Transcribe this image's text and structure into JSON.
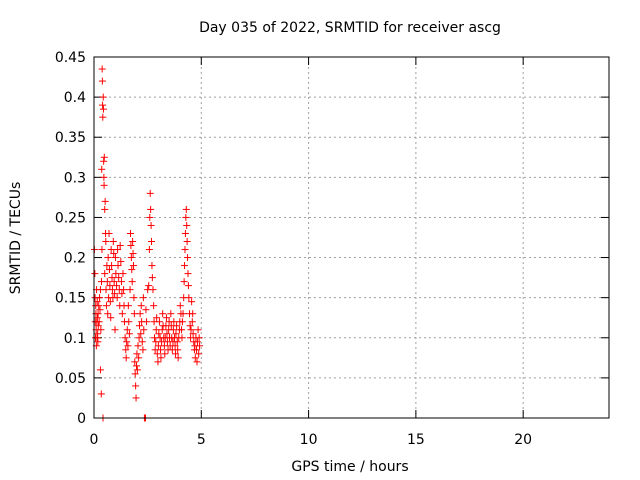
{
  "chart_data": {
    "type": "scatter",
    "title": "Day 035 of 2022, SRMTID for receiver ascg",
    "xlabel": "GPS time / hours",
    "ylabel": "SRMTID / TECUs",
    "xlim": [
      0,
      24
    ],
    "ylim": [
      0,
      0.45
    ],
    "x_ticks": [
      0,
      5,
      10,
      15,
      20
    ],
    "x_tick_labels": [
      "0",
      "5",
      "10",
      "15",
      "20"
    ],
    "y_ticks": [
      0,
      0.05,
      0.1,
      0.15,
      0.2,
      0.25,
      0.3,
      0.35,
      0.4,
      0.45
    ],
    "y_tick_labels": [
      "0",
      "0.05",
      "0.1",
      "0.15",
      "0.2",
      "0.25",
      "0.3",
      "0.35",
      "0.4",
      "0.45"
    ],
    "grid": true,
    "marker": "+",
    "series": [
      {
        "name": "SRMTID",
        "color": "#ff0000",
        "points": [
          [
            0.02,
            0.21
          ],
          [
            0.04,
            0.18
          ],
          [
            0.05,
            0.15
          ],
          [
            0.06,
            0.12
          ],
          [
            0.07,
            0.1
          ],
          [
            0.08,
            0.14
          ],
          [
            0.09,
            0.13
          ],
          [
            0.1,
            0.11
          ],
          [
            0.11,
            0.09
          ],
          [
            0.12,
            0.16
          ],
          [
            0.13,
            0.12
          ],
          [
            0.14,
            0.1
          ],
          [
            0.15,
            0.145
          ],
          [
            0.16,
            0.125
          ],
          [
            0.17,
            0.105
          ],
          [
            0.18,
            0.095
          ],
          [
            0.19,
            0.13
          ],
          [
            0.2,
            0.115
          ],
          [
            0.22,
            0.14
          ],
          [
            0.24,
            0.12
          ],
          [
            0.26,
            0.15
          ],
          [
            0.28,
            0.135
          ],
          [
            0.3,
            0.06
          ],
          [
            0.3,
            0.16
          ],
          [
            0.32,
            0.11
          ],
          [
            0.34,
            0.03
          ],
          [
            0.35,
            0.17
          ],
          [
            0.36,
            0.31
          ],
          [
            0.37,
            0.21
          ],
          [
            0.38,
            0.435
          ],
          [
            0.39,
            0.42
          ],
          [
            0.4,
            0.39
          ],
          [
            0.41,
            0.375
          ],
          [
            0.42,
            0.0
          ],
          [
            0.43,
            0.4
          ],
          [
            0.44,
            0.385
          ],
          [
            0.45,
            0.32
          ],
          [
            0.46,
            0.3
          ],
          [
            0.47,
            0.29
          ],
          [
            0.48,
            0.325
          ],
          [
            0.5,
            0.18
          ],
          [
            0.5,
            0.26
          ],
          [
            0.52,
            0.27
          ],
          [
            0.54,
            0.23
          ],
          [
            0.55,
            0.22
          ],
          [
            0.56,
            0.16
          ],
          [
            0.58,
            0.14
          ],
          [
            0.6,
            0.19
          ],
          [
            0.62,
            0.17
          ],
          [
            0.64,
            0.13
          ],
          [
            0.66,
            0.2
          ],
          [
            0.68,
            0.15
          ],
          [
            0.7,
            0.23
          ],
          [
            0.72,
            0.185
          ],
          [
            0.74,
            0.165
          ],
          [
            0.76,
            0.145
          ],
          [
            0.78,
            0.125
          ],
          [
            0.8,
            0.21
          ],
          [
            0.82,
            0.19
          ],
          [
            0.84,
            0.175
          ],
          [
            0.86,
            0.16
          ],
          [
            0.88,
            0.15
          ],
          [
            0.9,
            0.22
          ],
          [
            0.92,
            0.205
          ],
          [
            0.94,
            0.17
          ],
          [
            0.96,
            0.155
          ],
          [
            0.98,
            0.11
          ],
          [
            1.0,
            0.2
          ],
          [
            1.02,
            0.18
          ],
          [
            1.05,
            0.165
          ],
          [
            1.08,
            0.15
          ],
          [
            1.1,
            0.21
          ],
          [
            1.12,
            0.19
          ],
          [
            1.15,
            0.175
          ],
          [
            1.18,
            0.16
          ],
          [
            1.2,
            0.14
          ],
          [
            1.22,
            0.215
          ],
          [
            1.25,
            0.195
          ],
          [
            1.28,
            0.17
          ],
          [
            1.3,
            0.155
          ],
          [
            1.32,
            0.13
          ],
          [
            1.35,
            0.18
          ],
          [
            1.38,
            0.16
          ],
          [
            1.4,
            0.14
          ],
          [
            1.42,
            0.12
          ],
          [
            1.45,
            0.1
          ],
          [
            1.48,
            0.085
          ],
          [
            1.5,
            0.075
          ],
          [
            1.52,
            0.095
          ],
          [
            1.55,
            0.11
          ],
          [
            1.58,
            0.09
          ],
          [
            1.6,
            0.14
          ],
          [
            1.62,
            0.12
          ],
          [
            1.65,
            0.105
          ],
          [
            1.68,
            0.16
          ],
          [
            1.7,
            0.23
          ],
          [
            1.72,
            0.215
          ],
          [
            1.74,
            0.2
          ],
          [
            1.76,
            0.185
          ],
          [
            1.78,
            0.17
          ],
          [
            1.8,
            0.22
          ],
          [
            1.82,
            0.205
          ],
          [
            1.84,
            0.19
          ],
          [
            1.86,
            0.15
          ],
          [
            1.88,
            0.13
          ],
          [
            1.9,
            0.07
          ],
          [
            1.92,
            0.055
          ],
          [
            1.94,
            0.04
          ],
          [
            1.96,
            0.025
          ],
          [
            1.98,
            0.065
          ],
          [
            2.0,
            0.08
          ],
          [
            2.02,
            0.06
          ],
          [
            2.05,
            0.09
          ],
          [
            2.08,
            0.075
          ],
          [
            2.1,
            0.1
          ],
          [
            2.12,
            0.115
          ],
          [
            2.15,
            0.13
          ],
          [
            2.18,
            0.105
          ],
          [
            2.2,
            0.14
          ],
          [
            2.22,
            0.12
          ],
          [
            2.25,
            0.095
          ],
          [
            2.28,
            0.085
          ],
          [
            2.3,
            0.15
          ],
          [
            2.32,
            0.11
          ],
          [
            2.35,
            0.0
          ],
          [
            2.4,
            0.0
          ],
          [
            2.42,
            0.135
          ],
          [
            2.45,
            0.12
          ],
          [
            2.5,
            0.16
          ],
          [
            2.55,
            0.165
          ],
          [
            2.58,
            0.21
          ],
          [
            2.6,
            0.25
          ],
          [
            2.62,
            0.28
          ],
          [
            2.64,
            0.26
          ],
          [
            2.66,
            0.24
          ],
          [
            2.68,
            0.22
          ],
          [
            2.7,
            0.19
          ],
          [
            2.72,
            0.175
          ],
          [
            2.75,
            0.16
          ],
          [
            2.78,
            0.14
          ],
          [
            2.8,
            0.12
          ],
          [
            2.82,
            0.1
          ],
          [
            2.85,
            0.085
          ],
          [
            2.88,
            0.095
          ],
          [
            2.9,
            0.11
          ],
          [
            2.92,
            0.125
          ],
          [
            2.95,
            0.08
          ],
          [
            2.98,
            0.07
          ],
          [
            3.0,
            0.09
          ],
          [
            3.02,
            0.105
          ],
          [
            3.05,
            0.12
          ],
          [
            3.08,
            0.1
          ],
          [
            3.1,
            0.085
          ],
          [
            3.12,
            0.075
          ],
          [
            3.15,
            0.095
          ],
          [
            3.18,
            0.11
          ],
          [
            3.2,
            0.13
          ],
          [
            3.22,
            0.115
          ],
          [
            3.25,
            0.1
          ],
          [
            3.28,
            0.09
          ],
          [
            3.3,
            0.08
          ],
          [
            3.32,
            0.1
          ],
          [
            3.35,
            0.115
          ],
          [
            3.38,
            0.125
          ],
          [
            3.4,
            0.105
          ],
          [
            3.42,
            0.095
          ],
          [
            3.45,
            0.085
          ],
          [
            3.48,
            0.11
          ],
          [
            3.5,
            0.12
          ],
          [
            3.52,
            0.1
          ],
          [
            3.55,
            0.09
          ],
          [
            3.58,
            0.13
          ],
          [
            3.6,
            0.115
          ],
          [
            3.62,
            0.1
          ],
          [
            3.65,
            0.085
          ],
          [
            3.68,
            0.095
          ],
          [
            3.7,
            0.11
          ],
          [
            3.72,
            0.12
          ],
          [
            3.75,
            0.1
          ],
          [
            3.78,
            0.09
          ],
          [
            3.8,
            0.08
          ],
          [
            3.82,
            0.105
          ],
          [
            3.85,
            0.115
          ],
          [
            3.88,
            0.095
          ],
          [
            3.9,
            0.085
          ],
          [
            3.92,
            0.075
          ],
          [
            3.95,
            0.1
          ],
          [
            3.98,
            0.11
          ],
          [
            4.0,
            0.12
          ],
          [
            4.02,
            0.14
          ],
          [
            4.05,
            0.13
          ],
          [
            4.08,
            0.11
          ],
          [
            4.1,
            0.1
          ],
          [
            4.12,
            0.12
          ],
          [
            4.15,
            0.13
          ],
          [
            4.18,
            0.15
          ],
          [
            4.2,
            0.17
          ],
          [
            4.22,
            0.19
          ],
          [
            4.24,
            0.21
          ],
          [
            4.26,
            0.23
          ],
          [
            4.28,
            0.25
          ],
          [
            4.3,
            0.26
          ],
          [
            4.32,
            0.24
          ],
          [
            4.34,
            0.22
          ],
          [
            4.36,
            0.2
          ],
          [
            4.38,
            0.18
          ],
          [
            4.4,
            0.165
          ],
          [
            4.42,
            0.15
          ],
          [
            4.45,
            0.13
          ],
          [
            4.48,
            0.115
          ],
          [
            4.5,
            0.1
          ],
          [
            4.52,
            0.11
          ],
          [
            4.55,
            0.145
          ],
          [
            4.58,
            0.12
          ],
          [
            4.6,
            0.13
          ],
          [
            4.62,
            0.105
          ],
          [
            4.65,
            0.095
          ],
          [
            4.68,
            0.085
          ],
          [
            4.7,
            0.09
          ],
          [
            4.72,
            0.075
          ],
          [
            4.75,
            0.1
          ],
          [
            4.78,
            0.085
          ],
          [
            4.8,
            0.07
          ],
          [
            4.82,
            0.095
          ],
          [
            4.85,
            0.11
          ],
          [
            4.88,
            0.08
          ],
          [
            4.9,
            0.1
          ],
          [
            4.92,
            0.09
          ]
        ]
      }
    ]
  }
}
